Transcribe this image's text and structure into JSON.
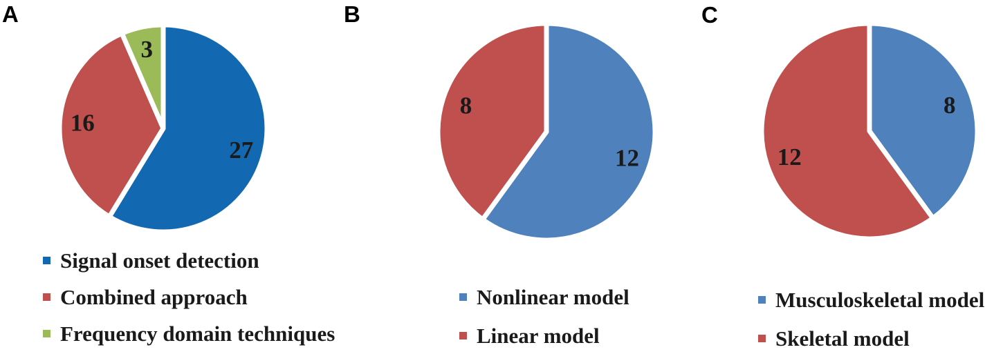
{
  "figure_background": "#ffffff",
  "separator_color": "#ffffff",
  "text_color": "#1a1a1a",
  "chart_data": [
    {
      "type": "pie",
      "panel": "A",
      "categories": [
        "Signal onset detection",
        "Combined approach",
        "Frequency domain techniques"
      ],
      "values": [
        27,
        16,
        3
      ],
      "data_labels": [
        "27",
        "16",
        "3"
      ],
      "colors": [
        "#1268b1",
        "#c0504d",
        "#9bbb59"
      ],
      "start_angle_deg": 0,
      "direction": "clockwise",
      "legend_position": "below-left",
      "legend_marker": "square"
    },
    {
      "type": "pie",
      "panel": "B",
      "categories": [
        "Nonlinear model",
        "Linear model"
      ],
      "values": [
        12,
        8
      ],
      "data_labels": [
        "12",
        "8"
      ],
      "colors": [
        "#4f81bd",
        "#c0504d"
      ],
      "start_angle_deg": 0,
      "direction": "clockwise",
      "legend_position": "below-center",
      "legend_marker": "square"
    },
    {
      "type": "pie",
      "panel": "C",
      "categories": [
        "Musculoskeletal model",
        "Skeletal model"
      ],
      "values": [
        8,
        12
      ],
      "data_labels": [
        "8",
        "12"
      ],
      "colors": [
        "#4f81bd",
        "#c0504d"
      ],
      "start_angle_deg": 0,
      "direction": "clockwise",
      "legend_position": "below-center",
      "legend_marker": "square"
    }
  ]
}
